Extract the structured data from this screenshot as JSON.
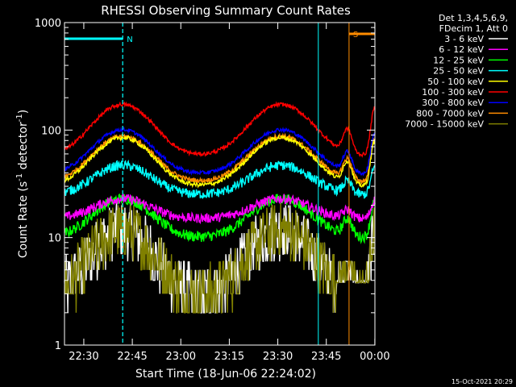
{
  "chart_data": {
    "type": "line",
    "title": "RHESSI Observing Summary Count Rates",
    "xlabel": "Start Time (18-Jun-06 22:24:02)",
    "ylabel_main": "Count Rate (s",
    "ylabel_sup1": "-1",
    "ylabel_mid": " detector",
    "ylabel_sup2": "-1",
    "ylabel_end": ")",
    "yscale": "log",
    "ylim": [
      1,
      1000
    ],
    "xlim_minutes": [
      0,
      96
    ],
    "x_ticks": [
      "22:30",
      "22:45",
      "23:00",
      "23:15",
      "23:30",
      "23:45",
      "00:00"
    ],
    "x_tick_minutes": [
      5.97,
      20.97,
      35.97,
      50.97,
      65.97,
      80.97,
      95.97
    ],
    "y_ticks": [
      "1",
      "10",
      "100",
      "1000"
    ],
    "y_tick_values": [
      1,
      10,
      100,
      1000
    ],
    "legend_header": [
      "Det 1,3,4,5,6,9,",
      "FDecim 1, Att 0"
    ],
    "series": [
      {
        "name": "3 - 6 keV",
        "color": "#ffffff"
      },
      {
        "name": "6 - 12 keV",
        "color": "#ff00ff"
      },
      {
        "name": "12 - 25 keV",
        "color": "#00ff00"
      },
      {
        "name": "25 - 50 keV",
        "color": "#00ffff"
      },
      {
        "name": "50 - 100 keV",
        "color": "#ffff00"
      },
      {
        "name": "100 - 300 keV",
        "color": "#ff0000"
      },
      {
        "name": "300 - 800 keV",
        "color": "#0000ff"
      },
      {
        "name": "800 - 7000 keV",
        "color": "#ff8c00"
      },
      {
        "name": "7000 - 15000 keV",
        "color": "#808000"
      }
    ],
    "annotations": [
      {
        "label": "N",
        "color": "#00ffff",
        "x_minutes": [
          0,
          18
        ],
        "at_minute": 18
      },
      {
        "label": "S",
        "color": "#ff8c00",
        "x_minutes": [
          88,
          96
        ],
        "at_minute": 88
      }
    ],
    "marker_lines_minutes": [
      0,
      18,
      78.5,
      96
    ]
  },
  "timestamp": "15-Oct-2021 20:29"
}
